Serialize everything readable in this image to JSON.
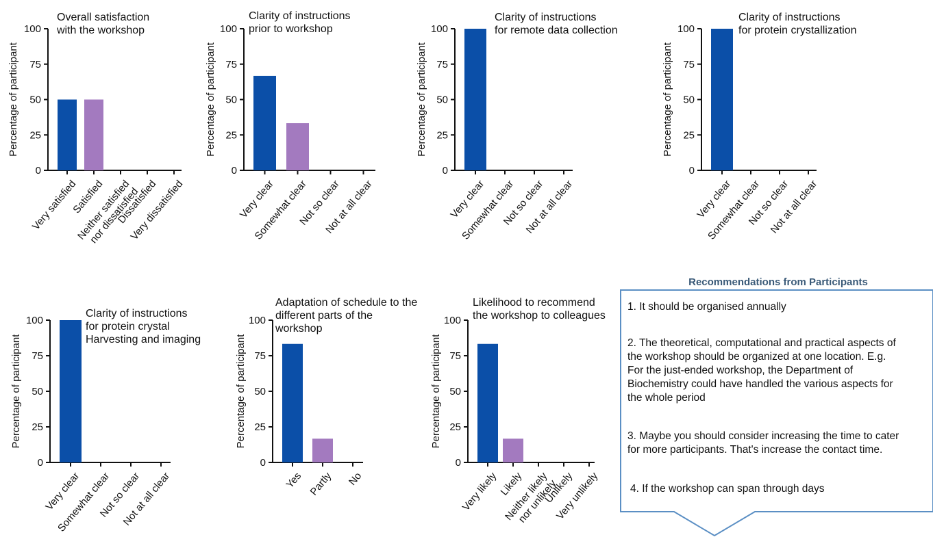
{
  "chart_data": [
    {
      "type": "bar",
      "title": [
        "Overall satisfaction",
        "with the workshop"
      ],
      "ylabel": "Percentage of participant",
      "ylim": [
        0,
        100
      ],
      "yticks": [
        "0",
        "25",
        "50",
        "75",
        "100"
      ],
      "categories": [
        [
          "Very satisfied"
        ],
        [
          "Satisfied"
        ],
        [
          "Neither satisfied",
          "nor dissatisfied"
        ],
        [
          "Dissatisfied"
        ],
        [
          "Very dissatisfied"
        ]
      ],
      "values": [
        50,
        50,
        0,
        0,
        0
      ],
      "colors": [
        "#0b4fa8",
        "#a37abf",
        "#0b4fa8",
        "#0b4fa8",
        "#0b4fa8"
      ]
    },
    {
      "type": "bar",
      "title": [
        "Clarity of instructions",
        "prior to workshop"
      ],
      "ylabel": "Percentage of participant",
      "ylim": [
        0,
        100
      ],
      "yticks": [
        "0",
        "25",
        "50",
        "75",
        "100"
      ],
      "categories": [
        [
          "Very clear"
        ],
        [
          "Somewhat clear"
        ],
        [
          "Not so clear"
        ],
        [
          "Not at all clear"
        ]
      ],
      "values": [
        66.7,
        33.3,
        0,
        0
      ],
      "colors": [
        "#0b4fa8",
        "#a37abf",
        "#0b4fa8",
        "#0b4fa8"
      ]
    },
    {
      "type": "bar",
      "title": [
        "Clarity of instructions",
        "for remote data collection"
      ],
      "ylabel": "Percentage of participant",
      "ylim": [
        0,
        100
      ],
      "yticks": [
        "0",
        "25",
        "50",
        "75",
        "100"
      ],
      "categories": [
        [
          "Very clear"
        ],
        [
          "Somewhat clear"
        ],
        [
          "Not so clear"
        ],
        [
          "Not at all clear"
        ]
      ],
      "values": [
        100,
        0,
        0,
        0
      ],
      "colors": [
        "#0b4fa8",
        "#a37abf",
        "#0b4fa8",
        "#0b4fa8"
      ]
    },
    {
      "type": "bar",
      "title": [
        "Clarity of instructions",
        "for protein crystallization"
      ],
      "ylabel": "Percentage of participant",
      "ylim": [
        0,
        100
      ],
      "yticks": [
        "0",
        "25",
        "50",
        "75",
        "100"
      ],
      "categories": [
        [
          "Very clear"
        ],
        [
          "Somewhat clear"
        ],
        [
          "Not so clear"
        ],
        [
          "Not at all clear"
        ]
      ],
      "values": [
        100,
        0,
        0,
        0
      ],
      "colors": [
        "#0b4fa8",
        "#a37abf",
        "#0b4fa8",
        "#0b4fa8"
      ]
    },
    {
      "type": "bar",
      "title": [
        "Clarity of instructions",
        "for protein crystal",
        "Harvesting and imaging"
      ],
      "ylabel": "Percentage of participant",
      "ylim": [
        0,
        100
      ],
      "yticks": [
        "0",
        "25",
        "50",
        "75",
        "100"
      ],
      "categories": [
        [
          "Very clear"
        ],
        [
          "Somewhat clear"
        ],
        [
          "Not so clear"
        ],
        [
          "Not at all clear"
        ]
      ],
      "values": [
        100,
        0,
        0,
        0
      ],
      "colors": [
        "#0b4fa8",
        "#a37abf",
        "#0b4fa8",
        "#0b4fa8"
      ]
    },
    {
      "type": "bar",
      "title": [
        "Adaptation of schedule  to the",
        " different parts of the",
        "workshop"
      ],
      "ylabel": "Percentage of participant",
      "ylim": [
        0,
        100
      ],
      "yticks": [
        "0",
        "25",
        "50",
        "75",
        "100"
      ],
      "categories": [
        [
          "Yes"
        ],
        [
          "Partly"
        ],
        [
          "No"
        ]
      ],
      "values": [
        83.3,
        16.7,
        0
      ],
      "colors": [
        "#0b4fa8",
        "#a37abf",
        "#0b4fa8"
      ]
    },
    {
      "type": "bar",
      "title": [
        "Likelihood to recommend",
        "the workshop to colleagues"
      ],
      "ylabel": "Percentage of participant",
      "ylim": [
        0,
        100
      ],
      "yticks": [
        "0",
        "25",
        "50",
        "75",
        "100"
      ],
      "categories": [
        [
          "Very likely"
        ],
        [
          "Likely"
        ],
        [
          "Neither likely",
          "nor unlikely"
        ],
        [
          "Unlikely"
        ],
        [
          "Very unlikely"
        ]
      ],
      "values": [
        83.3,
        16.7,
        0,
        0,
        0
      ],
      "colors": [
        "#0b4fa8",
        "#a37abf",
        "#0b4fa8",
        "#0b4fa8",
        "#0b4fa8"
      ]
    }
  ],
  "recommendations": {
    "heading": "Recommendations from Participants",
    "border_color": "#5b8fc4",
    "items": [
      [
        "1. It should be organised annually"
      ],
      [
        "2. The theoretical, computational and practical aspects of",
        "the workshop should be organized at one location. E.g.",
        "For the just-ended workshop, the Department of",
        "Biochemistry could have handled the various aspects for",
        "the whole period"
      ],
      [
        "3. Maybe you should consider increasing the time to cater",
        "for more participants. That's increase the contact time."
      ],
      [
        "4. If the workshop can span through days"
      ]
    ]
  }
}
